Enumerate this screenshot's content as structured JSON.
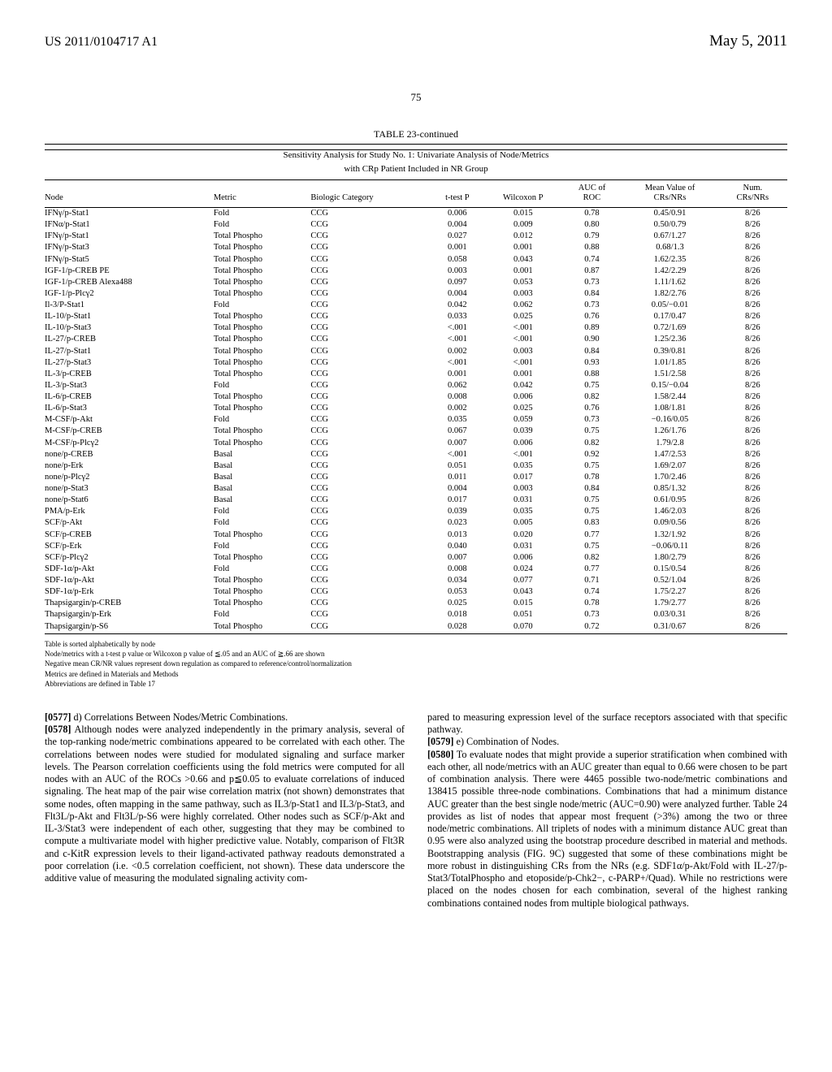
{
  "header": {
    "doc_id": "US 2011/0104717 A1",
    "date": "May 5, 2011",
    "page_number": "75"
  },
  "table": {
    "title": "TABLE 23-continued",
    "subtitle_line1": "Sensitivity Analysis for Study No. 1: Univariate Analysis of Node/Metrics",
    "subtitle_line2": "with CRp Patient Included in NR Group",
    "columns": [
      "Node",
      "Metric",
      "Biologic Category",
      "t-test P",
      "Wilcoxon P",
      "AUC of ROC",
      "Mean Value of CRs/NRs",
      "Num. CRs/NRs"
    ],
    "rows": [
      [
        "IFNγ/p-Stat1",
        "Fold",
        "CCG",
        "0.006",
        "0.015",
        "0.78",
        "0.45/0.91",
        "8/26"
      ],
      [
        "IFNα/p-Stat1",
        "Fold",
        "CCG",
        "0.004",
        "0.009",
        "0.80",
        "0.50/0.79",
        "8/26"
      ],
      [
        "IFNγ/p-Stat1",
        "Total Phospho",
        "CCG",
        "0.027",
        "0.012",
        "0.79",
        "0.67/1.27",
        "8/26"
      ],
      [
        "IFNγ/p-Stat3",
        "Total Phospho",
        "CCG",
        "0.001",
        "0.001",
        "0.88",
        "0.68/1.3",
        "8/26"
      ],
      [
        "IFNγ/p-Stat5",
        "Total Phospho",
        "CCG",
        "0.058",
        "0.043",
        "0.74",
        "1.62/2.35",
        "8/26"
      ],
      [
        "IGF-1/p-CREB PE",
        "Total Phospho",
        "CCG",
        "0.003",
        "0.001",
        "0.87",
        "1.42/2.29",
        "8/26"
      ],
      [
        "IGF-1/p-CREB Alexa488",
        "Total Phospho",
        "CCG",
        "0.097",
        "0.053",
        "0.73",
        "1.11/1.62",
        "8/26"
      ],
      [
        "IGF-1/p-Plcγ2",
        "Total Phospho",
        "CCG",
        "0.004",
        "0.003",
        "0.84",
        "1.82/2.76",
        "8/26"
      ],
      [
        "Il-3/P-Stat1",
        "Fold",
        "CCG",
        "0.042",
        "0.062",
        "0.73",
        "0.05/−0.01",
        "8/26"
      ],
      [
        "IL-10/p-Stat1",
        "Total Phospho",
        "CCG",
        "0.033",
        "0.025",
        "0.76",
        "0.17/0.47",
        "8/26"
      ],
      [
        "IL-10/p-Stat3",
        "Total Phospho",
        "CCG",
        "<.001",
        "<.001",
        "0.89",
        "0.72/1.69",
        "8/26"
      ],
      [
        "IL-27/p-CREB",
        "Total Phospho",
        "CCG",
        "<.001",
        "<.001",
        "0.90",
        "1.25/2.36",
        "8/26"
      ],
      [
        "IL-27/p-Stat1",
        "Total Phospho",
        "CCG",
        "0.002",
        "0.003",
        "0.84",
        "0.39/0.81",
        "8/26"
      ],
      [
        "IL-27/p-Stat3",
        "Total Phospho",
        "CCG",
        "<.001",
        "<.001",
        "0.93",
        "1.01/1.85",
        "8/26"
      ],
      [
        "IL-3/p-CREB",
        "Total Phospho",
        "CCG",
        "0.001",
        "0.001",
        "0.88",
        "1.51/2.58",
        "8/26"
      ],
      [
        "IL-3/p-Stat3",
        "Fold",
        "CCG",
        "0.062",
        "0.042",
        "0.75",
        "0.15/−0.04",
        "8/26"
      ],
      [
        "IL-6/p-CREB",
        "Total Phospho",
        "CCG",
        "0.008",
        "0.006",
        "0.82",
        "1.58/2.44",
        "8/26"
      ],
      [
        "IL-6/p-Stat3",
        "Total Phospho",
        "CCG",
        "0.002",
        "0.025",
        "0.76",
        "1.08/1.81",
        "8/26"
      ],
      [
        "M-CSF/p-Akt",
        "Fold",
        "CCG",
        "0.035",
        "0.059",
        "0.73",
        "−0.16/0.05",
        "8/26"
      ],
      [
        "M-CSF/p-CREB",
        "Total Phospho",
        "CCG",
        "0.067",
        "0.039",
        "0.75",
        "1.26/1.76",
        "8/26"
      ],
      [
        "M-CSF/p-Plcγ2",
        "Total Phospho",
        "CCG",
        "0.007",
        "0.006",
        "0.82",
        "1.79/2.8",
        "8/26"
      ],
      [
        "none/p-CREB",
        "Basal",
        "CCG",
        "<.001",
        "<.001",
        "0.92",
        "1.47/2.53",
        "8/26"
      ],
      [
        "none/p-Erk",
        "Basal",
        "CCG",
        "0.051",
        "0.035",
        "0.75",
        "1.69/2.07",
        "8/26"
      ],
      [
        "none/p-Plcγ2",
        "Basal",
        "CCG",
        "0.011",
        "0.017",
        "0.78",
        "1.70/2.46",
        "8/26"
      ],
      [
        "none/p-Stat3",
        "Basal",
        "CCG",
        "0.004",
        "0.003",
        "0.84",
        "0.85/1.32",
        "8/26"
      ],
      [
        "none/p-Stat6",
        "Basal",
        "CCG",
        "0.017",
        "0.031",
        "0.75",
        "0.61/0.95",
        "8/26"
      ],
      [
        "PMA/p-Erk",
        "Fold",
        "CCG",
        "0.039",
        "0.035",
        "0.75",
        "1.46/2.03",
        "8/26"
      ],
      [
        "SCF/p-Akt",
        "Fold",
        "CCG",
        "0.023",
        "0.005",
        "0.83",
        "0.09/0.56",
        "8/26"
      ],
      [
        "SCF/p-CREB",
        "Total Phospho",
        "CCG",
        "0.013",
        "0.020",
        "0.77",
        "1.32/1.92",
        "8/26"
      ],
      [
        "SCF/p-Erk",
        "Fold",
        "CCG",
        "0.040",
        "0.031",
        "0.75",
        "−0.06/0.11",
        "8/26"
      ],
      [
        "SCF/p-Plcγ2",
        "Total Phospho",
        "CCG",
        "0.007",
        "0.006",
        "0.82",
        "1.80/2.79",
        "8/26"
      ],
      [
        "SDF-1α/p-Akt",
        "Fold",
        "CCG",
        "0.008",
        "0.024",
        "0.77",
        "0.15/0.54",
        "8/26"
      ],
      [
        "SDF-1α/p-Akt",
        "Total Phospho",
        "CCG",
        "0.034",
        "0.077",
        "0.71",
        "0.52/1.04",
        "8/26"
      ],
      [
        "SDF-1α/p-Erk",
        "Total Phospho",
        "CCG",
        "0.053",
        "0.043",
        "0.74",
        "1.75/2.27",
        "8/26"
      ],
      [
        "Thapsigargin/p-CREB",
        "Total Phospho",
        "CCG",
        "0.025",
        "0.015",
        "0.78",
        "1.79/2.77",
        "8/26"
      ],
      [
        "Thapsigargin/p-Erk",
        "Fold",
        "CCG",
        "0.018",
        "0.051",
        "0.73",
        "0.03/0.31",
        "8/26"
      ],
      [
        "Thapsigargin/p-S6",
        "Total Phospho",
        "CCG",
        "0.028",
        "0.070",
        "0.72",
        "0.31/0.67",
        "8/26"
      ]
    ],
    "notes": [
      "Table is sorted alphabetically by node",
      "Node/metrics with a t-test p value or Wilcoxon p value of ≦.05 and an AUC of ≧.66 are shown",
      "Negative mean CR/NR values represent down regulation as compared to reference/control/normalization",
      "Metrics are defined in Materials and Methods",
      "Abbreviations are defined in Table 17"
    ]
  },
  "body": {
    "left": {
      "p1_label": "[0577]",
      "p1_text": " d) Correlations Between Nodes/Metric Combinations.",
      "p2_label": "[0578]",
      "p2_text": " Although nodes were analyzed independently in the primary analysis, several of the top-ranking node/metric combinations appeared to be correlated with each other. The correlations between nodes were studied for modulated signaling and surface marker levels. The Pearson correlation coefficients using the fold metrics were computed for all nodes with an AUC of the ROCs >0.66 and p≦0.05 to evaluate correlations of induced signaling. The heat map of the pair wise correlation matrix (not shown) demonstrates that some nodes, often mapping in the same pathway, such as IL3/p-Stat1 and IL3/p-Stat3, and Flt3L/p-Akt and Flt3L/p-S6 were highly correlated. Other nodes such as SCF/p-Akt and IL-3/Stat3 were independent of each other, suggesting that they may be combined to compute a multivariate model with higher predictive value. Notably, comparison of Flt3R and c-KitR expression levels to their ligand-activated pathway readouts demonstrated a poor correlation (i.e. <0.5 correlation coefficient, not shown). These data underscore the additive value of measuring the modulated signaling activity com-"
    },
    "right": {
      "p0_text": "pared to measuring expression level of the surface receptors associated with that specific pathway.",
      "p1_label": "[0579]",
      "p1_text": " e) Combination of Nodes.",
      "p2_label": "[0580]",
      "p2_text": " To evaluate nodes that might provide a superior stratification when combined with each other, all node/metrics with an AUC greater than equal to 0.66 were chosen to be part of combination analysis. There were 4465 possible two-node/metric combinations and 138415 possible three-node combinations. Combinations that had a minimum distance AUC greater than the best single node/metric (AUC=0.90) were analyzed further. Table 24 provides as list of nodes that appear most frequent (>3%) among the two or three node/metric combinations. All triplets of nodes with a minimum distance AUC great than 0.95 were also analyzed using the bootstrap procedure described in material and methods. Bootstrapping analysis (FIG. 9C) suggested that some of these combinations might be more robust in distinguishing CRs from the NRs (e.g. SDF1α/p-Akt/Fold with IL-27/p-Stat3/TotalPhospho and etoposide/p-Chk2−, c-PARP+/Quad). While no restrictions were placed on the nodes chosen for each combination, several of the highest ranking combinations contained nodes from multiple biological pathways."
    }
  }
}
